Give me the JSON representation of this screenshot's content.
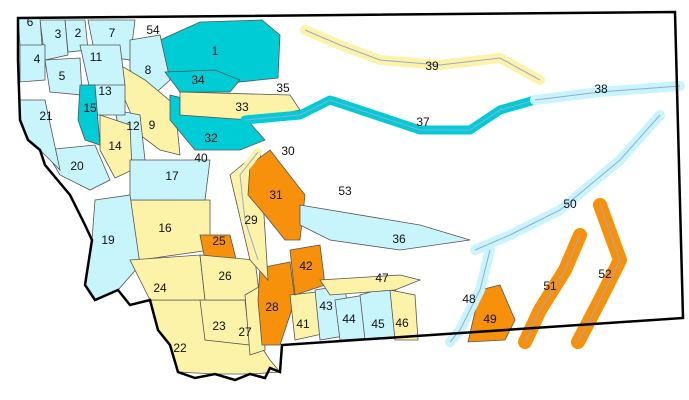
{
  "colors": {
    "light_blue": "#c8f4fc",
    "teal": "#00ccd6",
    "yellow": "#fdf3a8",
    "orange": "#f7900a",
    "none": "#ffffff",
    "border": "#000000",
    "river": "#9aa8d8",
    "county_line": "#555555"
  },
  "regions": [
    {
      "id": "1",
      "category": "teal"
    },
    {
      "id": "2",
      "category": "light_blue"
    },
    {
      "id": "3",
      "category": "light_blue"
    },
    {
      "id": "4",
      "category": "light_blue"
    },
    {
      "id": "5",
      "category": "light_blue"
    },
    {
      "id": "6",
      "category": "light_blue"
    },
    {
      "id": "7",
      "category": "light_blue"
    },
    {
      "id": "8",
      "category": "light_blue"
    },
    {
      "id": "9",
      "category": "yellow"
    },
    {
      "id": "11",
      "category": "light_blue"
    },
    {
      "id": "12",
      "category": "light_blue"
    },
    {
      "id": "13",
      "category": "light_blue"
    },
    {
      "id": "14",
      "category": "yellow"
    },
    {
      "id": "15",
      "category": "teal"
    },
    {
      "id": "16",
      "category": "yellow"
    },
    {
      "id": "17",
      "category": "light_blue"
    },
    {
      "id": "19",
      "category": "light_blue"
    },
    {
      "id": "20",
      "category": "light_blue"
    },
    {
      "id": "21",
      "category": "light_blue"
    },
    {
      "id": "22",
      "category": "yellow"
    },
    {
      "id": "23",
      "category": "yellow"
    },
    {
      "id": "24",
      "category": "yellow"
    },
    {
      "id": "25",
      "category": "orange"
    },
    {
      "id": "26",
      "category": "yellow"
    },
    {
      "id": "27",
      "category": "yellow"
    },
    {
      "id": "28",
      "category": "orange"
    },
    {
      "id": "29",
      "category": "yellow"
    },
    {
      "id": "30",
      "category": "none"
    },
    {
      "id": "31",
      "category": "orange"
    },
    {
      "id": "32",
      "category": "teal"
    },
    {
      "id": "33",
      "category": "yellow"
    },
    {
      "id": "34",
      "category": "teal"
    },
    {
      "id": "35",
      "category": "none"
    },
    {
      "id": "36",
      "category": "light_blue"
    },
    {
      "id": "37",
      "category": "teal"
    },
    {
      "id": "38",
      "category": "light_blue"
    },
    {
      "id": "39",
      "category": "yellow"
    },
    {
      "id": "40",
      "category": "light_blue"
    },
    {
      "id": "41",
      "category": "yellow"
    },
    {
      "id": "42",
      "category": "orange"
    },
    {
      "id": "43",
      "category": "light_blue"
    },
    {
      "id": "44",
      "category": "light_blue"
    },
    {
      "id": "45",
      "category": "light_blue"
    },
    {
      "id": "46",
      "category": "yellow"
    },
    {
      "id": "47",
      "category": "yellow"
    },
    {
      "id": "48",
      "category": "light_blue"
    },
    {
      "id": "49",
      "category": "orange"
    },
    {
      "id": "50",
      "category": "light_blue"
    },
    {
      "id": "51",
      "category": "orange"
    },
    {
      "id": "52",
      "category": "orange"
    },
    {
      "id": "53",
      "category": "none"
    },
    {
      "id": "54",
      "category": "none"
    }
  ]
}
